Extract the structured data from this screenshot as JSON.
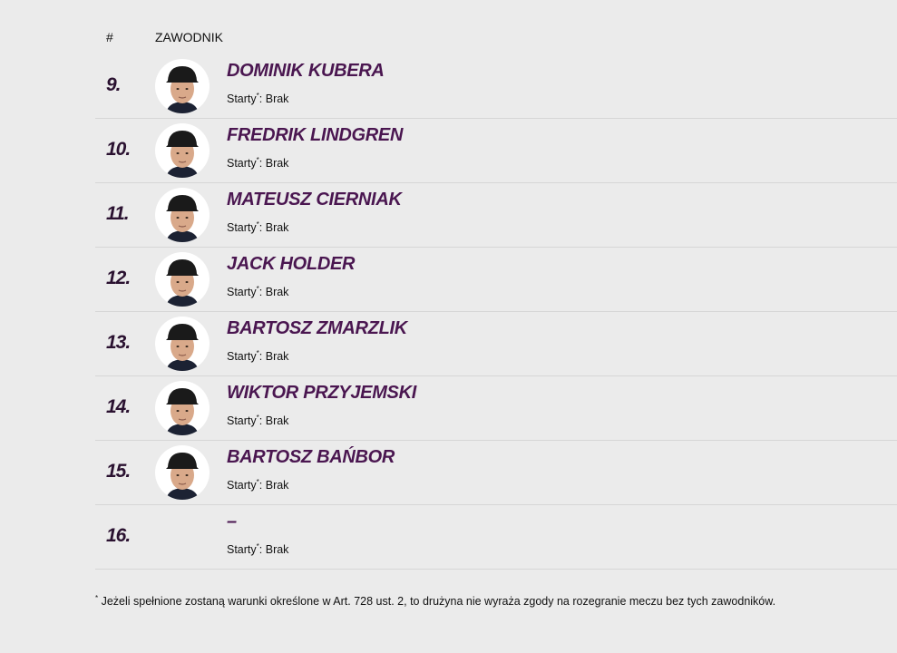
{
  "header": {
    "number": "#",
    "rider": "ZAWODNIK"
  },
  "starts_label": "Starty",
  "asterisk": "*",
  "riders": [
    {
      "number": "9.",
      "name": "DOMINIK KUBERA",
      "starts": ": Brak",
      "photo": true
    },
    {
      "number": "10.",
      "name": "FREDRIK LINDGREN",
      "starts": ": Brak",
      "photo": true
    },
    {
      "number": "11.",
      "name": "MATEUSZ CIERNIAK",
      "starts": ": Brak",
      "photo": true
    },
    {
      "number": "12.",
      "name": "JACK HOLDER",
      "starts": ": Brak",
      "photo": true
    },
    {
      "number": "13.",
      "name": "BARTOSZ ZMARZLIK",
      "starts": ": Brak",
      "photo": true
    },
    {
      "number": "14.",
      "name": "WIKTOR PRZYJEMSKI",
      "starts": ": Brak",
      "photo": true
    },
    {
      "number": "15.",
      "name": "BARTOSZ BAŃBOR",
      "starts": ": Brak",
      "photo": true
    },
    {
      "number": "16.",
      "name": "–",
      "starts": ": Brak",
      "photo": false
    }
  ],
  "footnote": {
    "mark": "*",
    "text": " Jeżeli spełnione zostaną warunki określone w Art. 728 ust. 2, to drużyna nie wyraża zgody na rozegranie meczu bez tych zawodników."
  },
  "colors": {
    "name": "#4a1650",
    "background": "#ebebeb"
  }
}
